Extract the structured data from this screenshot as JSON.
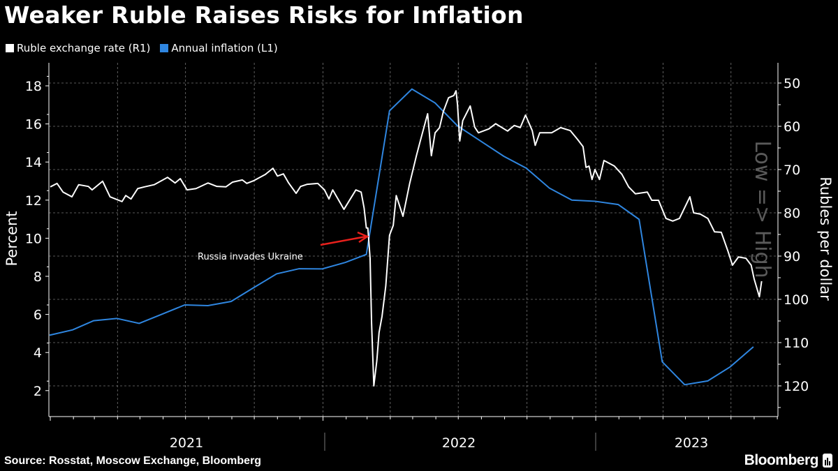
{
  "title": "Weaker Ruble Raises Risks for Inflation",
  "source": "Source: Rosstat, Moscow Exchange, Bloomberg",
  "brand": "Bloomberg",
  "chart_data": {
    "type": "line",
    "legend_position": "top-left",
    "grid": true,
    "colors": {
      "ruble": "#ffffff",
      "inflation": "#2f86e0",
      "annotation_arrow": "#e8201c",
      "inverted_note": "#5a5a5a"
    },
    "left_axis": {
      "label": "Percent",
      "range": [
        1,
        19.5
      ],
      "ticks": [
        2,
        4,
        6,
        8,
        10,
        12,
        14,
        16,
        18
      ]
    },
    "right_axis": {
      "label": "Rubles per dollar",
      "inverted": true,
      "range": [
        45,
        125
      ],
      "ticks": [
        50,
        60,
        70,
        80,
        90,
        100,
        110,
        120
      ],
      "note": "Low => High"
    },
    "x_axis": {
      "tick_labels": [
        "2021",
        "2022",
        "2023"
      ]
    },
    "annotation": {
      "text": "Russia invades Ukraine",
      "date": "2022-02-24"
    },
    "series": [
      {
        "name": "Ruble exchange rate (R1)",
        "axis": "right",
        "points": [
          [
            "2021-01-01",
            74.0
          ],
          [
            "2021-01-10",
            73.2
          ],
          [
            "2021-01-18",
            75.2
          ],
          [
            "2021-01-30",
            76.3
          ],
          [
            "2021-02-08",
            73.5
          ],
          [
            "2021-02-21",
            73.9
          ],
          [
            "2021-02-26",
            74.7
          ],
          [
            "2021-03-12",
            72.7
          ],
          [
            "2021-03-22",
            76.3
          ],
          [
            "2021-04-07",
            77.4
          ],
          [
            "2021-04-12",
            76.0
          ],
          [
            "2021-04-19",
            76.8
          ],
          [
            "2021-04-28",
            74.4
          ],
          [
            "2021-05-07",
            74.0
          ],
          [
            "2021-05-20",
            73.5
          ],
          [
            "2021-06-07",
            71.8
          ],
          [
            "2021-06-17",
            73.1
          ],
          [
            "2021-06-24",
            72.1
          ],
          [
            "2021-07-03",
            74.7
          ],
          [
            "2021-07-15",
            74.4
          ],
          [
            "2021-07-31",
            73.1
          ],
          [
            "2021-08-12",
            73.9
          ],
          [
            "2021-08-24",
            74.0
          ],
          [
            "2021-09-02",
            72.9
          ],
          [
            "2021-09-15",
            72.4
          ],
          [
            "2021-09-21",
            73.2
          ],
          [
            "2021-09-30",
            72.6
          ],
          [
            "2021-10-16",
            71.1
          ],
          [
            "2021-10-26",
            69.7
          ],
          [
            "2021-11-01",
            71.5
          ],
          [
            "2021-11-09",
            71.0
          ],
          [
            "2021-11-16",
            73.1
          ],
          [
            "2021-11-26",
            75.5
          ],
          [
            "2021-12-02",
            73.9
          ],
          [
            "2021-12-11",
            73.4
          ],
          [
            "2021-12-25",
            73.2
          ],
          [
            "2022-01-03",
            74.7
          ],
          [
            "2022-01-09",
            76.8
          ],
          [
            "2022-01-14",
            74.7
          ],
          [
            "2022-01-20",
            76.5
          ],
          [
            "2022-01-29",
            79.2
          ],
          [
            "2022-02-14",
            74.7
          ],
          [
            "2022-02-21",
            75.2
          ],
          [
            "2022-02-25",
            78.9
          ],
          [
            "2022-02-28",
            83.5
          ],
          [
            "2022-03-02",
            83.5
          ],
          [
            "2022-03-05",
            90.5
          ],
          [
            "2022-03-07",
            105.5
          ],
          [
            "2022-03-10",
            120.0
          ],
          [
            "2022-03-14",
            114.2
          ],
          [
            "2022-03-17",
            107.7
          ],
          [
            "2022-03-21",
            103.9
          ],
          [
            "2022-03-26",
            96.9
          ],
          [
            "2022-03-31",
            85.2
          ],
          [
            "2022-04-05",
            82.9
          ],
          [
            "2022-04-09",
            76.0
          ],
          [
            "2022-04-18",
            80.8
          ],
          [
            "2022-04-27",
            73.2
          ],
          [
            "2022-05-06",
            66.8
          ],
          [
            "2022-05-11",
            63.5
          ],
          [
            "2022-05-21",
            57.1
          ],
          [
            "2022-05-26",
            66.8
          ],
          [
            "2022-05-31",
            61.5
          ],
          [
            "2022-06-06",
            60.3
          ],
          [
            "2022-06-11",
            56.6
          ],
          [
            "2022-06-18",
            53.4
          ],
          [
            "2022-06-25",
            52.9
          ],
          [
            "2022-06-28",
            51.8
          ],
          [
            "2022-06-30",
            55.0
          ],
          [
            "2022-07-03",
            63.4
          ],
          [
            "2022-07-07",
            58.7
          ],
          [
            "2022-07-17",
            55.3
          ],
          [
            "2022-07-23",
            60.2
          ],
          [
            "2022-07-28",
            61.5
          ],
          [
            "2022-08-11",
            60.6
          ],
          [
            "2022-08-20",
            59.4
          ],
          [
            "2022-09-05",
            61.1
          ],
          [
            "2022-09-14",
            59.8
          ],
          [
            "2022-09-22",
            60.3
          ],
          [
            "2022-09-29",
            57.4
          ],
          [
            "2022-10-08",
            61.0
          ],
          [
            "2022-10-12",
            64.4
          ],
          [
            "2022-10-18",
            61.5
          ],
          [
            "2022-11-03",
            61.5
          ],
          [
            "2022-11-15",
            60.3
          ],
          [
            "2022-11-28",
            61.0
          ],
          [
            "2022-12-08",
            63.1
          ],
          [
            "2022-12-15",
            64.7
          ],
          [
            "2022-12-19",
            69.5
          ],
          [
            "2022-12-23",
            69.2
          ],
          [
            "2022-12-27",
            72.3
          ],
          [
            "2022-12-31",
            70.0
          ],
          [
            "2023-01-06",
            72.3
          ],
          [
            "2023-01-12",
            67.9
          ],
          [
            "2023-01-26",
            69.2
          ],
          [
            "2023-02-05",
            71.1
          ],
          [
            "2023-02-14",
            74.0
          ],
          [
            "2023-02-23",
            75.6
          ],
          [
            "2023-03-11",
            75.2
          ],
          [
            "2023-03-17",
            77.1
          ],
          [
            "2023-03-26",
            77.1
          ],
          [
            "2023-04-05",
            81.3
          ],
          [
            "2023-04-14",
            81.9
          ],
          [
            "2023-04-23",
            81.3
          ],
          [
            "2023-05-07",
            76.3
          ],
          [
            "2023-05-12",
            80.0
          ],
          [
            "2023-05-21",
            80.3
          ],
          [
            "2023-05-31",
            81.3
          ],
          [
            "2023-06-09",
            84.4
          ],
          [
            "2023-06-18",
            84.5
          ],
          [
            "2023-06-27",
            88.9
          ],
          [
            "2023-07-03",
            92.1
          ],
          [
            "2023-07-11",
            90.2
          ],
          [
            "2023-07-21",
            90.5
          ],
          [
            "2023-07-28",
            92.1
          ],
          [
            "2023-08-01",
            95.3
          ],
          [
            "2023-08-08",
            99.4
          ],
          [
            "2023-08-11",
            95.8
          ]
        ]
      },
      {
        "name": "Annual inflation (L1)",
        "axis": "left",
        "points": [
          [
            "2020-12-31",
            4.91
          ],
          [
            "2021-01-31",
            5.19
          ],
          [
            "2021-02-28",
            5.67
          ],
          [
            "2021-03-31",
            5.79
          ],
          [
            "2021-04-30",
            5.53
          ],
          [
            "2021-05-31",
            6.02
          ],
          [
            "2021-06-30",
            6.5
          ],
          [
            "2021-07-31",
            6.46
          ],
          [
            "2021-08-31",
            6.68
          ],
          [
            "2021-09-30",
            7.4
          ],
          [
            "2021-10-31",
            8.13
          ],
          [
            "2021-11-30",
            8.4
          ],
          [
            "2021-12-31",
            8.39
          ],
          [
            "2022-01-31",
            8.73
          ],
          [
            "2022-02-28",
            9.15
          ],
          [
            "2022-03-31",
            16.69
          ],
          [
            "2022-04-30",
            17.83
          ],
          [
            "2022-05-31",
            17.1
          ],
          [
            "2022-06-30",
            15.9
          ],
          [
            "2022-07-31",
            15.1
          ],
          [
            "2022-08-31",
            14.3
          ],
          [
            "2022-09-30",
            13.68
          ],
          [
            "2022-10-31",
            12.63
          ],
          [
            "2022-11-30",
            12.0
          ],
          [
            "2022-12-31",
            11.94
          ],
          [
            "2023-01-31",
            11.77
          ],
          [
            "2023-02-28",
            10.99
          ],
          [
            "2023-03-31",
            3.51
          ],
          [
            "2023-04-30",
            2.31
          ],
          [
            "2023-05-31",
            2.51
          ],
          [
            "2023-06-30",
            3.25
          ],
          [
            "2023-07-31",
            4.3
          ]
        ]
      }
    ]
  }
}
